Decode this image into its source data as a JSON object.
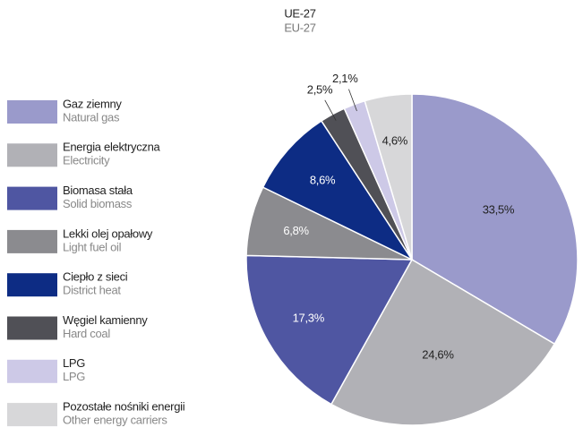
{
  "chart_data": {
    "type": "pie",
    "title": "UE-27",
    "subtitle": "EU-27",
    "categories": [
      "Gaz ziemny",
      "Energia elektryczna",
      "Biomasa stała",
      "Lekki olej opałowy",
      "Ciepło z sieci",
      "Węgiel kamienny",
      "LPG",
      "Pozostałe nośniki energii"
    ],
    "categories_en": [
      "Natural gas",
      "Electricity",
      "Solid biomass",
      "Light fuel oil",
      "District heat",
      "Hard coal",
      "LPG",
      "Other energy carriers"
    ],
    "values": [
      33.5,
      24.6,
      17.3,
      6.8,
      8.6,
      2.5,
      2.1,
      4.6
    ],
    "value_labels": [
      "33,5%",
      "24,6%",
      "17,3%",
      "6,8%",
      "8,6%",
      "2,5%",
      "2,1%",
      "4,6%"
    ],
    "colors": [
      "#9a9acb",
      "#b1b1b6",
      "#4f56a2",
      "#8b8b8f",
      "#0d2c84",
      "#505056",
      "#cdc9e7",
      "#d7d7d9"
    ],
    "legend": "left"
  }
}
